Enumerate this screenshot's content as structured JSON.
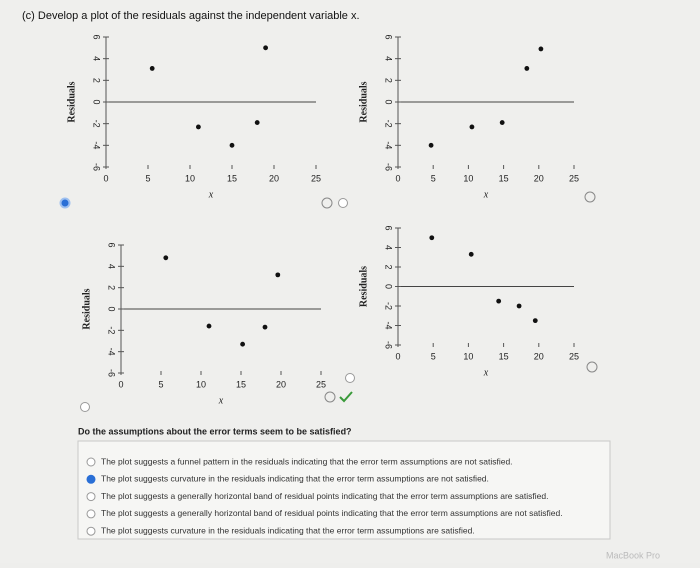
{
  "header": "(c) Develop a plot of the residuals against the independent variable x.",
  "chart_data": [
    {
      "type": "scatter",
      "xlabel": "x",
      "ylabel": "Residuals",
      "x": [
        5.5,
        11,
        15,
        18,
        19
      ],
      "values": [
        3.1,
        -2.3,
        -4,
        -1.9,
        5
      ],
      "xlim": [
        0,
        25
      ],
      "ylim": [
        -6,
        6
      ],
      "xticks": [
        0,
        5,
        10,
        15,
        20,
        25
      ],
      "yticks": [
        -6,
        -4,
        -2,
        0,
        2,
        4,
        6
      ],
      "color": "#111111",
      "selected": true
    },
    {
      "type": "scatter",
      "xlabel": "x",
      "ylabel": "Residuals",
      "x": [
        4.7,
        10.5,
        14.8,
        18.3,
        20.3
      ],
      "values": [
        -4,
        -2.3,
        -1.9,
        3.1,
        4.9
      ],
      "xlim": [
        0,
        25
      ],
      "ylim": [
        -6,
        6
      ],
      "xticks": [
        0,
        5,
        10,
        15,
        20,
        25
      ],
      "yticks": [
        -6,
        -4,
        -2,
        0,
        2,
        4,
        6
      ],
      "color": "#111111",
      "selected": false
    },
    {
      "type": "scatter",
      "xlabel": "x",
      "ylabel": "Residuals",
      "x": [
        5.6,
        11,
        15.2,
        18,
        19.6
      ],
      "values": [
        4.8,
        -1.6,
        -3.3,
        -1.7,
        3.2
      ],
      "xlim": [
        0,
        25
      ],
      "ylim": [
        -6,
        6
      ],
      "xticks": [
        0,
        5,
        10,
        15,
        20,
        25
      ],
      "yticks": [
        -6,
        -4,
        -2,
        0,
        2,
        4,
        6
      ],
      "color": "#111111",
      "selected": false
    },
    {
      "type": "scatter",
      "xlabel": "x",
      "ylabel": "Residuals",
      "x": [
        4.8,
        10.4,
        14.3,
        17.2,
        19.5
      ],
      "values": [
        5,
        3.3,
        -1.5,
        -2,
        -3.5
      ],
      "xlim": [
        0,
        25
      ],
      "ylim": [
        -6,
        6
      ],
      "xticks": [
        0,
        5,
        10,
        15,
        20,
        25
      ],
      "yticks": [
        -6,
        -4,
        -2,
        0,
        2,
        4,
        6
      ],
      "color": "#111111",
      "selected": false
    }
  ],
  "question": "Do the assumptions about the error terms seem to be satisfied?",
  "options": [
    "The plot suggests a funnel pattern in the residuals indicating that the error term assumptions are not satisfied.",
    "The plot suggests curvature in the residuals indicating that the error term assumptions are not satisfied.",
    "The plot suggests a generally horizontal band of residual points indicating that the error term assumptions are satisfied.",
    "The plot suggests a generally horizontal band of residual points indicating that the error term assumptions are not satisfied.",
    "The plot suggests curvature in the residuals indicating that the error term assumptions are satisfied."
  ],
  "selected_option": 1,
  "footer": "MacBook Pro"
}
